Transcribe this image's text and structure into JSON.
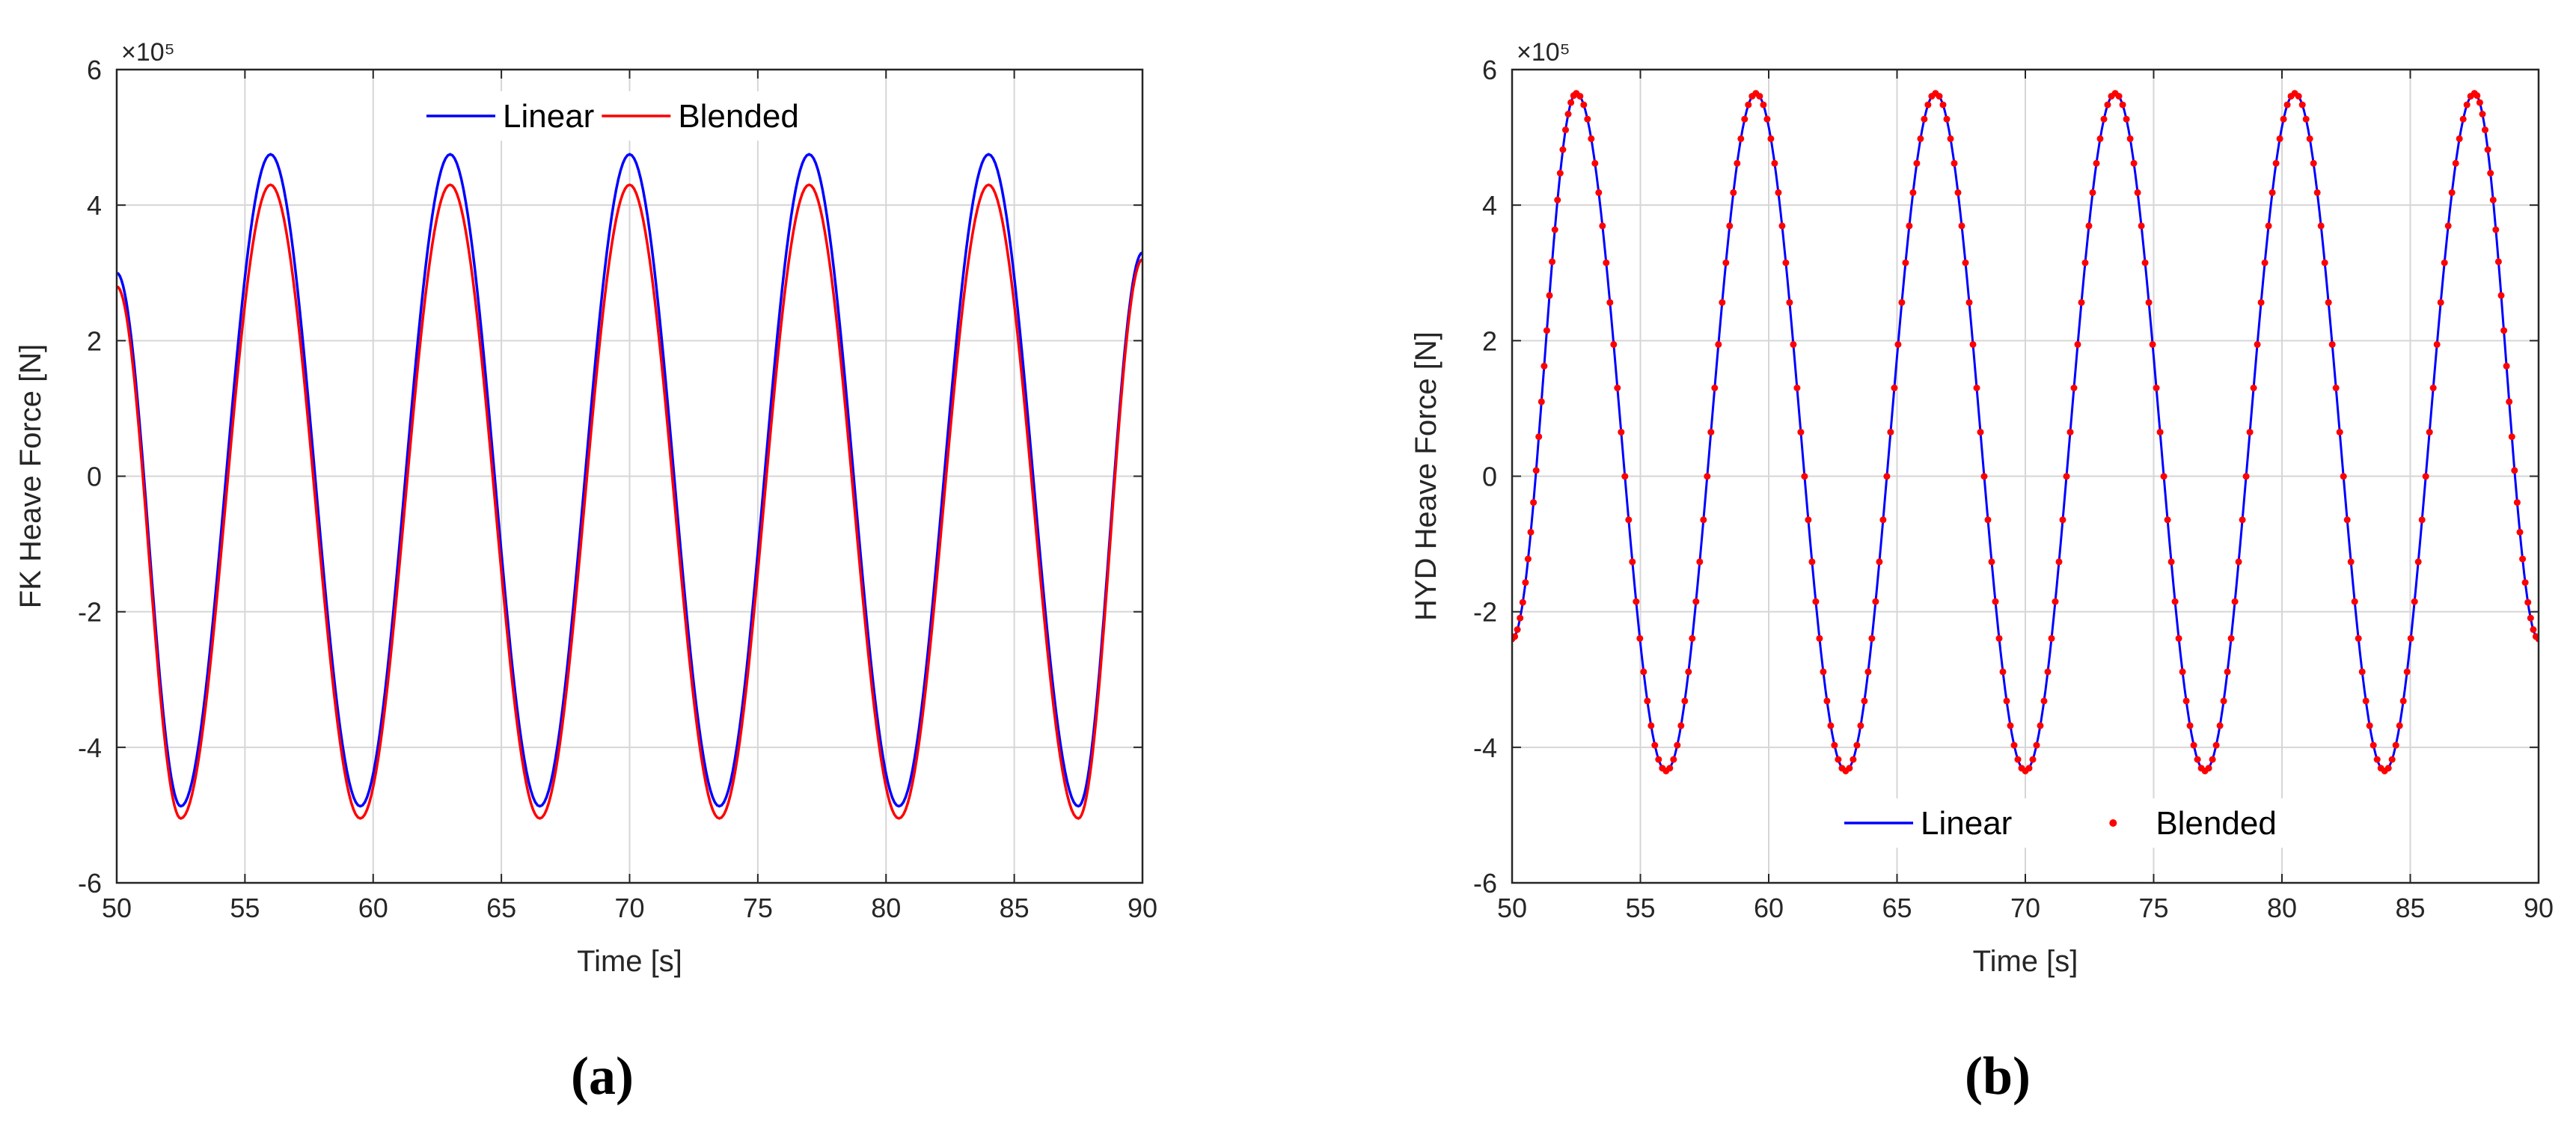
{
  "chart_data": [
    {
      "type": "line",
      "panel_label": "(a)",
      "xlabel": "Time [s]",
      "ylabel": "FK Heave Force [N]",
      "xlim": [
        50,
        90
      ],
      "ylim": [
        -6,
        6
      ],
      "y_exponent": "×10⁵",
      "xticks": [
        "50",
        "55",
        "60",
        "65",
        "70",
        "75",
        "80",
        "85",
        "90"
      ],
      "yticks": [
        "-6",
        "-4",
        "-2",
        "0",
        "2",
        "4",
        "6"
      ],
      "grid": true,
      "legend_position": "top-center",
      "colors": {
        "linear": "#0000ff",
        "blended": "#ff0000"
      },
      "series": [
        {
          "name": "Linear",
          "style": "line",
          "color": "#0000ff",
          "x": [
            50,
            52.5,
            56,
            59.5,
            63,
            66.5,
            70,
            73.5,
            77,
            80.5,
            84,
            87.5,
            90
          ],
          "values": [
            3.0,
            -4.87,
            4.75,
            -4.87,
            4.75,
            -4.87,
            4.75,
            -4.87,
            4.75,
            -4.87,
            4.75,
            -4.87,
            3.3
          ]
        },
        {
          "name": "Blended",
          "style": "line",
          "color": "#ff0000",
          "x": [
            50,
            52.5,
            56,
            59.5,
            63,
            66.5,
            70,
            73.5,
            77,
            80.5,
            84,
            87.5,
            90
          ],
          "values": [
            2.8,
            -5.05,
            4.3,
            -5.05,
            4.3,
            -5.05,
            4.3,
            -5.05,
            4.3,
            -5.05,
            4.3,
            -5.05,
            3.2
          ]
        }
      ]
    },
    {
      "type": "line",
      "panel_label": "(b)",
      "xlabel": "Time [s]",
      "ylabel": "HYD Heave Force [N]",
      "xlim": [
        50,
        90
      ],
      "ylim": [
        -6,
        6
      ],
      "y_exponent": "×10⁵",
      "xticks": [
        "50",
        "55",
        "60",
        "65",
        "70",
        "75",
        "80",
        "85",
        "90"
      ],
      "yticks": [
        "-6",
        "-4",
        "-2",
        "0",
        "2",
        "4",
        "6"
      ],
      "grid": true,
      "legend_position": "bottom-center",
      "colors": {
        "linear": "#0000ff",
        "blended": "#ff0000"
      },
      "series": [
        {
          "name": "Linear",
          "style": "line",
          "color": "#0000ff",
          "x": [
            50,
            52.5,
            56,
            59.5,
            63,
            66.5,
            70,
            73.5,
            77,
            80.5,
            84,
            87.5,
            90
          ],
          "values": [
            -2.4,
            5.65,
            -4.35,
            5.65,
            -4.35,
            5.65,
            -4.35,
            5.65,
            -4.35,
            5.65,
            -4.35,
            5.65,
            -2.4
          ]
        },
        {
          "name": "Blended",
          "style": "markers",
          "color": "#ff0000",
          "x": [
            50,
            52.5,
            56,
            59.5,
            63,
            66.5,
            70,
            73.5,
            77,
            80.5,
            84,
            87.5,
            90
          ],
          "values": [
            -2.4,
            5.65,
            -4.35,
            5.65,
            -4.35,
            5.65,
            -4.35,
            5.65,
            -4.35,
            5.65,
            -4.35,
            5.65,
            -2.4
          ]
        }
      ]
    }
  ]
}
